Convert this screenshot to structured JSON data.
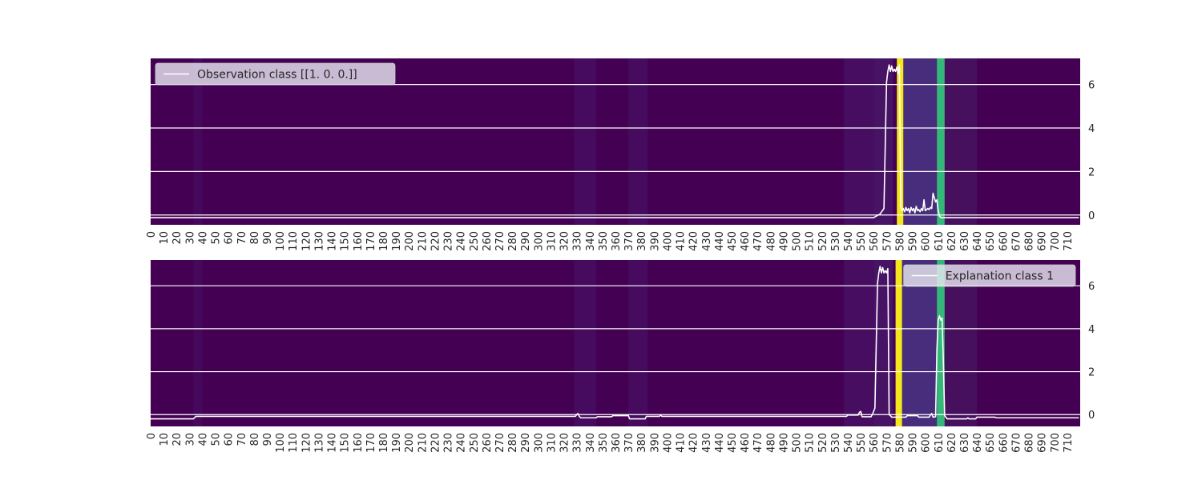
{
  "chart_data": [
    {
      "type": "line",
      "panel": "top",
      "x_range": [
        0,
        719
      ],
      "ylim": [
        -0.45,
        7.2
      ],
      "y_ticks": [
        0,
        2,
        4,
        6
      ],
      "x_ticks": [
        0,
        10,
        20,
        30,
        40,
        50,
        60,
        70,
        80,
        90,
        100,
        110,
        120,
        130,
        140,
        150,
        160,
        170,
        180,
        190,
        200,
        210,
        220,
        230,
        240,
        250,
        260,
        270,
        280,
        290,
        300,
        310,
        320,
        330,
        340,
        350,
        360,
        370,
        380,
        390,
        400,
        410,
        420,
        430,
        440,
        450,
        460,
        470,
        480,
        490,
        500,
        510,
        520,
        530,
        540,
        550,
        560,
        570,
        580,
        590,
        600,
        610,
        620,
        630,
        640,
        650,
        660,
        670,
        680,
        690,
        700,
        710
      ],
      "legend": {
        "label": "Observation class [[1. 0. 0.]]",
        "placement": "upper-left",
        "color": "#ffffff"
      },
      "background_heatmap": {
        "colormap": "viridis",
        "base_color": "#440154",
        "bands": [
          {
            "x": [
              578,
              583
            ],
            "color": "#f4e61e"
          },
          {
            "x": [
              609,
              615
            ],
            "color": "#35b779"
          },
          {
            "x": [
              583,
              609
            ],
            "color": "#472d7b"
          },
          {
            "x": [
              33,
              40
            ],
            "color": "#46085c"
          },
          {
            "x": [
              328,
              345
            ],
            "color": "#460b5e"
          },
          {
            "x": [
              370,
              385
            ],
            "color": "#460b5e"
          },
          {
            "x": [
              537,
              560
            ],
            "color": "#460d60"
          },
          {
            "x": [
              560,
              575
            ],
            "color": "#471365"
          },
          {
            "x": [
              615,
              640
            ],
            "color": "#46105f"
          }
        ]
      },
      "series": [
        {
          "color": "#ffffff",
          "points": [
            [
              0,
              -0.12
            ],
            [
              560,
              -0.12
            ],
            [
              565,
              0.05
            ],
            [
              568,
              0.3
            ],
            [
              570,
              6.1
            ],
            [
              571,
              6.6
            ],
            [
              572,
              6.9
            ],
            [
              573,
              6.6
            ],
            [
              574,
              6.85
            ],
            [
              575,
              6.6
            ],
            [
              576,
              6.7
            ],
            [
              577,
              6.6
            ],
            [
              578,
              6.8
            ],
            [
              579,
              6.5
            ],
            [
              580,
              6.9
            ],
            [
              581,
              0.4
            ],
            [
              582,
              0.2
            ],
            [
              583,
              0.3
            ],
            [
              584,
              0.15
            ],
            [
              585,
              0.35
            ],
            [
              586,
              0.2
            ],
            [
              587,
              0.3
            ],
            [
              588,
              0.1
            ],
            [
              589,
              0.35
            ],
            [
              590,
              0.2
            ],
            [
              591,
              0.3
            ],
            [
              592,
              0.1
            ],
            [
              593,
              0.4
            ],
            [
              594,
              0.2
            ],
            [
              595,
              0.25
            ],
            [
              596,
              0.15
            ],
            [
              597,
              0.3
            ],
            [
              598,
              0.2
            ],
            [
              599,
              0.7
            ],
            [
              600,
              0.2
            ],
            [
              601,
              0.25
            ],
            [
              602,
              0.3
            ],
            [
              603,
              0.25
            ],
            [
              604,
              0.35
            ],
            [
              605,
              0.3
            ],
            [
              606,
              1.0
            ],
            [
              607,
              0.8
            ],
            [
              608,
              0.6
            ],
            [
              609,
              0.7
            ],
            [
              610,
              0.2
            ],
            [
              611,
              -0.05
            ],
            [
              612,
              -0.12
            ],
            [
              719,
              -0.12
            ]
          ]
        }
      ]
    },
    {
      "type": "line",
      "panel": "bottom",
      "x_range": [
        0,
        719
      ],
      "ylim": [
        -0.55,
        7.2
      ],
      "y_ticks": [
        0,
        2,
        4,
        6
      ],
      "x_ticks": [
        0,
        10,
        20,
        30,
        40,
        50,
        60,
        70,
        80,
        90,
        100,
        110,
        120,
        130,
        140,
        150,
        160,
        170,
        180,
        190,
        200,
        210,
        220,
        230,
        240,
        250,
        260,
        270,
        280,
        290,
        300,
        310,
        320,
        330,
        340,
        350,
        360,
        370,
        380,
        390,
        400,
        410,
        420,
        430,
        440,
        450,
        460,
        470,
        480,
        490,
        500,
        510,
        520,
        530,
        540,
        550,
        560,
        570,
        580,
        590,
        600,
        610,
        620,
        630,
        640,
        650,
        660,
        670,
        680,
        690,
        700,
        710
      ],
      "legend": {
        "label": "Explanation class 1",
        "placement": "upper-right",
        "color": "#ffffff"
      },
      "background_heatmap": {
        "colormap": "viridis",
        "base_color": "#440154",
        "bands": [
          {
            "x": [
              577,
              582
            ],
            "color": "#f4e61e"
          },
          {
            "x": [
              609,
              615
            ],
            "color": "#35b779"
          },
          {
            "x": [
              582,
              609
            ],
            "color": "#472d7b"
          },
          {
            "x": [
              33,
              40
            ],
            "color": "#46085c"
          },
          {
            "x": [
              328,
              345
            ],
            "color": "#460b5e"
          },
          {
            "x": [
              370,
              385
            ],
            "color": "#460b5e"
          },
          {
            "x": [
              537,
              560
            ],
            "color": "#460d60"
          },
          {
            "x": [
              560,
              575
            ],
            "color": "#471365"
          },
          {
            "x": [
              615,
              640
            ],
            "color": "#46105f"
          }
        ]
      },
      "series": [
        {
          "color": "#ffffff",
          "points": [
            [
              0,
              -0.2
            ],
            [
              33,
              -0.2
            ],
            [
              34,
              -0.15
            ],
            [
              35,
              -0.08
            ],
            [
              329,
              -0.08
            ],
            [
              330,
              0.0
            ],
            [
              331,
              0.05
            ],
            [
              332,
              -0.08
            ],
            [
              333,
              -0.15
            ],
            [
              345,
              -0.15
            ],
            [
              346,
              -0.1
            ],
            [
              357,
              -0.1
            ],
            [
              358,
              -0.05
            ],
            [
              370,
              -0.05
            ],
            [
              371,
              -0.2
            ],
            [
              383,
              -0.2
            ],
            [
              384,
              -0.08
            ],
            [
              394,
              -0.08
            ],
            [
              395,
              -0.02
            ],
            [
              396,
              -0.08
            ],
            [
              539,
              -0.08
            ],
            [
              540,
              -0.02
            ],
            [
              548,
              -0.02
            ],
            [
              549,
              0.1
            ],
            [
              550,
              0.15
            ],
            [
              551,
              -0.1
            ],
            [
              558,
              -0.1
            ],
            [
              559,
              0.0
            ],
            [
              561,
              0.3
            ],
            [
              563,
              6.1
            ],
            [
              564,
              6.6
            ],
            [
              565,
              6.9
            ],
            [
              566,
              6.6
            ],
            [
              567,
              6.85
            ],
            [
              568,
              6.6
            ],
            [
              569,
              6.7
            ],
            [
              570,
              6.6
            ],
            [
              571,
              6.8
            ],
            [
              572,
              0.0
            ],
            [
              573,
              -0.05
            ],
            [
              574,
              -0.12
            ],
            [
              585,
              -0.12
            ],
            [
              586,
              -0.05
            ],
            [
              594,
              -0.05
            ],
            [
              595,
              -0.12
            ],
            [
              603,
              -0.12
            ],
            [
              604,
              -0.02
            ],
            [
              605,
              0.05
            ],
            [
              606,
              -0.12
            ],
            [
              608,
              -0.1
            ],
            [
              609,
              3.0
            ],
            [
              610,
              4.4
            ],
            [
              611,
              4.6
            ],
            [
              612,
              4.4
            ],
            [
              613,
              4.5
            ],
            [
              614,
              2.5
            ],
            [
              615,
              -0.05
            ],
            [
              617,
              -0.2
            ],
            [
              632,
              -0.2
            ],
            [
              633,
              -0.15
            ],
            [
              634,
              -0.2
            ],
            [
              639,
              -0.2
            ],
            [
              640,
              -0.12
            ],
            [
              654,
              -0.12
            ],
            [
              655,
              -0.15
            ],
            [
              719,
              -0.15
            ]
          ]
        }
      ]
    }
  ]
}
